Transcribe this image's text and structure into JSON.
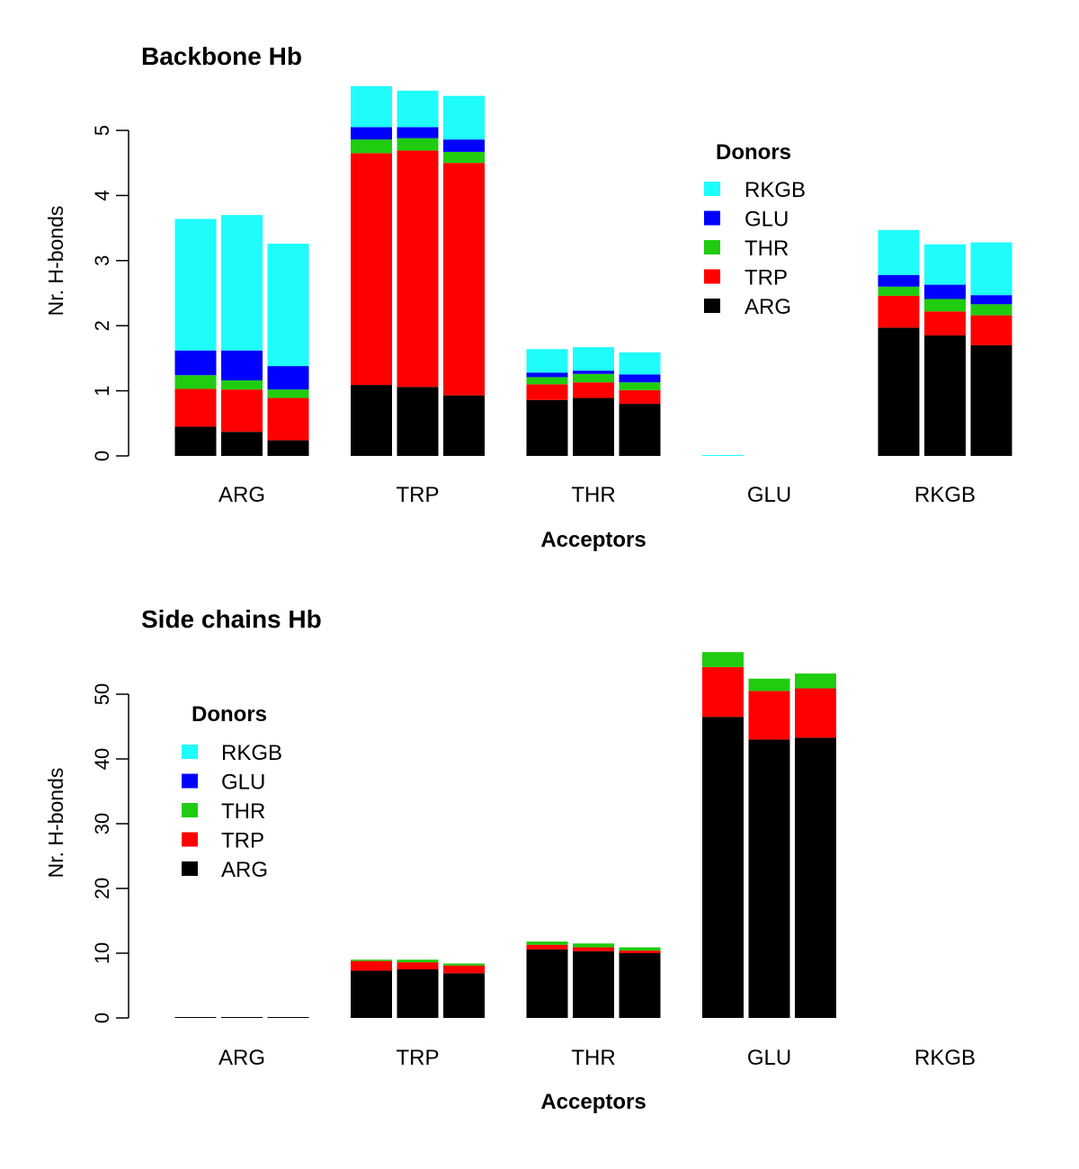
{
  "chart_data": [
    {
      "type": "bar",
      "stacked": true,
      "title": "Backbone Hb",
      "xlabel": "Acceptors",
      "ylabel": "Nr. H-bonds",
      "ylim": [
        0,
        5
      ],
      "yticks": [
        0,
        1,
        2,
        3,
        4,
        5
      ],
      "categories": [
        "ARG",
        "TRP",
        "THR",
        "GLU",
        "RKGB"
      ],
      "bars_per_category": 3,
      "legend": {
        "title": "Donors",
        "position": "top-right",
        "entries": [
          "RKGB",
          "GLU",
          "THR",
          "TRP",
          "ARG"
        ]
      },
      "series": [
        {
          "name": "ARG",
          "color": "#000000",
          "values": [
            [
              0.45,
              0.37,
              0.24
            ],
            [
              1.09,
              1.06,
              0.93
            ],
            [
              0.86,
              0.89,
              0.8
            ],
            [
              0,
              0,
              0
            ],
            [
              1.97,
              1.85,
              1.7
            ]
          ]
        },
        {
          "name": "TRP",
          "color": "#ff0000",
          "values": [
            [
              0.58,
              0.65,
              0.65
            ],
            [
              3.56,
              3.63,
              3.57
            ],
            [
              0.24,
              0.24,
              0.21
            ],
            [
              0,
              0,
              0
            ],
            [
              0.49,
              0.37,
              0.46
            ]
          ]
        },
        {
          "name": "THR",
          "color": "#1fcc0f",
          "values": [
            [
              0.21,
              0.14,
              0.13
            ],
            [
              0.21,
              0.19,
              0.17
            ],
            [
              0.11,
              0.13,
              0.12
            ],
            [
              0,
              0,
              0
            ],
            [
              0.14,
              0.19,
              0.17
            ]
          ]
        },
        {
          "name": "GLU",
          "color": "#0000ff",
          "values": [
            [
              0.38,
              0.46,
              0.36
            ],
            [
              0.19,
              0.17,
              0.19
            ],
            [
              0.07,
              0.05,
              0.12
            ],
            [
              0,
              0,
              0
            ],
            [
              0.18,
              0.22,
              0.14
            ]
          ]
        },
        {
          "name": "RKGB",
          "color": "#1ffcfc",
          "values": [
            [
              2.02,
              2.08,
              1.88
            ],
            [
              0.63,
              0.56,
              0.67
            ],
            [
              0.36,
              0.36,
              0.34
            ],
            [
              0.01,
              0,
              0
            ],
            [
              0.69,
              0.62,
              0.81
            ]
          ]
        }
      ]
    },
    {
      "type": "bar",
      "stacked": true,
      "title": "Side chains Hb",
      "xlabel": "Acceptors",
      "ylabel": "Nr. H-bonds",
      "ylim": [
        0,
        55
      ],
      "yticks": [
        0,
        10,
        20,
        30,
        40,
        50
      ],
      "categories": [
        "ARG",
        "TRP",
        "THR",
        "GLU",
        "RKGB"
      ],
      "bars_per_category": 3,
      "legend": {
        "title": "Donors",
        "position": "top-left",
        "entries": [
          "RKGB",
          "GLU",
          "THR",
          "TRP",
          "ARG"
        ]
      },
      "series": [
        {
          "name": "ARG",
          "color": "#000000",
          "values": [
            [
              0.1,
              0.1,
              0.1
            ],
            [
              7.3,
              7.5,
              6.9
            ],
            [
              10.6,
              10.3,
              10.0
            ],
            [
              46.5,
              43.0,
              43.3
            ],
            [
              0,
              0,
              0
            ]
          ]
        },
        {
          "name": "TRP",
          "color": "#ff0000",
          "values": [
            [
              0,
              0,
              0
            ],
            [
              1.5,
              1.1,
              1.2
            ],
            [
              0.7,
              0.6,
              0.4
            ],
            [
              7.7,
              7.5,
              7.6
            ],
            [
              0,
              0,
              0
            ]
          ]
        },
        {
          "name": "THR",
          "color": "#1fcc0f",
          "values": [
            [
              0,
              0,
              0
            ],
            [
              0.2,
              0.4,
              0.3
            ],
            [
              0.5,
              0.6,
              0.5
            ],
            [
              2.3,
              1.9,
              2.3
            ],
            [
              0,
              0,
              0
            ]
          ]
        },
        {
          "name": "GLU",
          "color": "#0000ff",
          "values": [
            [
              0,
              0,
              0
            ],
            [
              0,
              0,
              0
            ],
            [
              0,
              0,
              0
            ],
            [
              0,
              0,
              0
            ],
            [
              0,
              0,
              0
            ]
          ]
        },
        {
          "name": "RKGB",
          "color": "#1ffcfc",
          "values": [
            [
              0,
              0,
              0
            ],
            [
              0,
              0,
              0
            ],
            [
              0,
              0,
              0
            ],
            [
              0,
              0,
              0
            ],
            [
              0,
              0,
              0
            ]
          ]
        }
      ]
    }
  ]
}
